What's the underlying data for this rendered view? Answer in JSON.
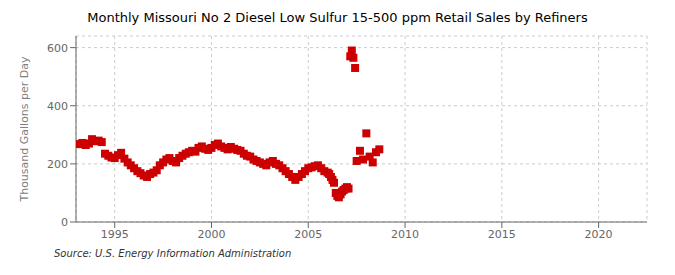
{
  "chart_data": {
    "type": "scatter",
    "title": "Monthly Missouri No 2 Diesel Low Sulfur 15-500 ppm Retail Sales by Refiners",
    "ylabel": "Thousand Gallons per Day",
    "annotations": [
      "Source: U.S. Energy Information Administration"
    ],
    "color": "#cc0000",
    "marker": "square",
    "grid": true,
    "xlim": [
      1993.0,
      2022.5
    ],
    "xticks": [
      1995,
      2000,
      2005,
      2010,
      2015,
      2020
    ],
    "ylim": [
      0,
      640
    ],
    "yticks": [
      0,
      200,
      400,
      600
    ],
    "x": [
      1993.17,
      1993.33,
      1993.5,
      1993.67,
      1993.83,
      1994.0,
      1994.17,
      1994.33,
      1994.5,
      1994.67,
      1994.83,
      1995.0,
      1995.17,
      1995.33,
      1995.5,
      1995.67,
      1995.83,
      1996.0,
      1996.17,
      1996.33,
      1996.5,
      1996.67,
      1996.83,
      1997.0,
      1997.17,
      1997.33,
      1997.5,
      1997.67,
      1997.83,
      1998.0,
      1998.17,
      1998.33,
      1998.5,
      1998.67,
      1998.83,
      1999.0,
      1999.17,
      1999.33,
      1999.5,
      1999.67,
      1999.83,
      2000.0,
      2000.17,
      2000.33,
      2000.5,
      2000.67,
      2000.83,
      2001.0,
      2001.17,
      2001.33,
      2001.5,
      2001.67,
      2001.83,
      2002.0,
      2002.17,
      2002.33,
      2002.5,
      2002.67,
      2002.83,
      2003.0,
      2003.17,
      2003.33,
      2003.5,
      2003.67,
      2003.83,
      2004.0,
      2004.17,
      2004.33,
      2004.5,
      2004.67,
      2004.83,
      2005.0,
      2005.17,
      2005.33,
      2005.5,
      2005.67,
      2005.83,
      2006.0,
      2006.08,
      2006.17,
      2006.25,
      2006.33,
      2006.42,
      2006.5,
      2006.58,
      2006.67,
      2006.75,
      2006.83,
      2006.92,
      2007.0,
      2007.08,
      2007.17,
      2007.25,
      2007.33,
      2007.42,
      2007.5,
      2007.67,
      2007.83,
      2008.0,
      2008.17,
      2008.33,
      2008.5,
      2008.67
    ],
    "values": [
      268,
      272,
      265,
      270,
      285,
      278,
      280,
      275,
      235,
      228,
      222,
      220,
      230,
      238,
      218,
      205,
      195,
      185,
      175,
      168,
      160,
      155,
      165,
      170,
      178,
      195,
      205,
      215,
      220,
      210,
      205,
      220,
      228,
      235,
      240,
      245,
      242,
      255,
      260,
      252,
      248,
      255,
      265,
      270,
      260,
      255,
      250,
      258,
      252,
      248,
      245,
      235,
      228,
      225,
      215,
      210,
      205,
      200,
      195,
      205,
      210,
      200,
      195,
      185,
      175,
      165,
      155,
      145,
      155,
      165,
      175,
      185,
      188,
      192,
      195,
      185,
      175,
      170,
      165,
      155,
      145,
      135,
      100,
      90,
      85,
      95,
      105,
      110,
      115,
      120,
      115,
      570,
      590,
      565,
      530,
      210,
      245,
      215,
      305,
      225,
      205,
      240,
      250
    ]
  }
}
